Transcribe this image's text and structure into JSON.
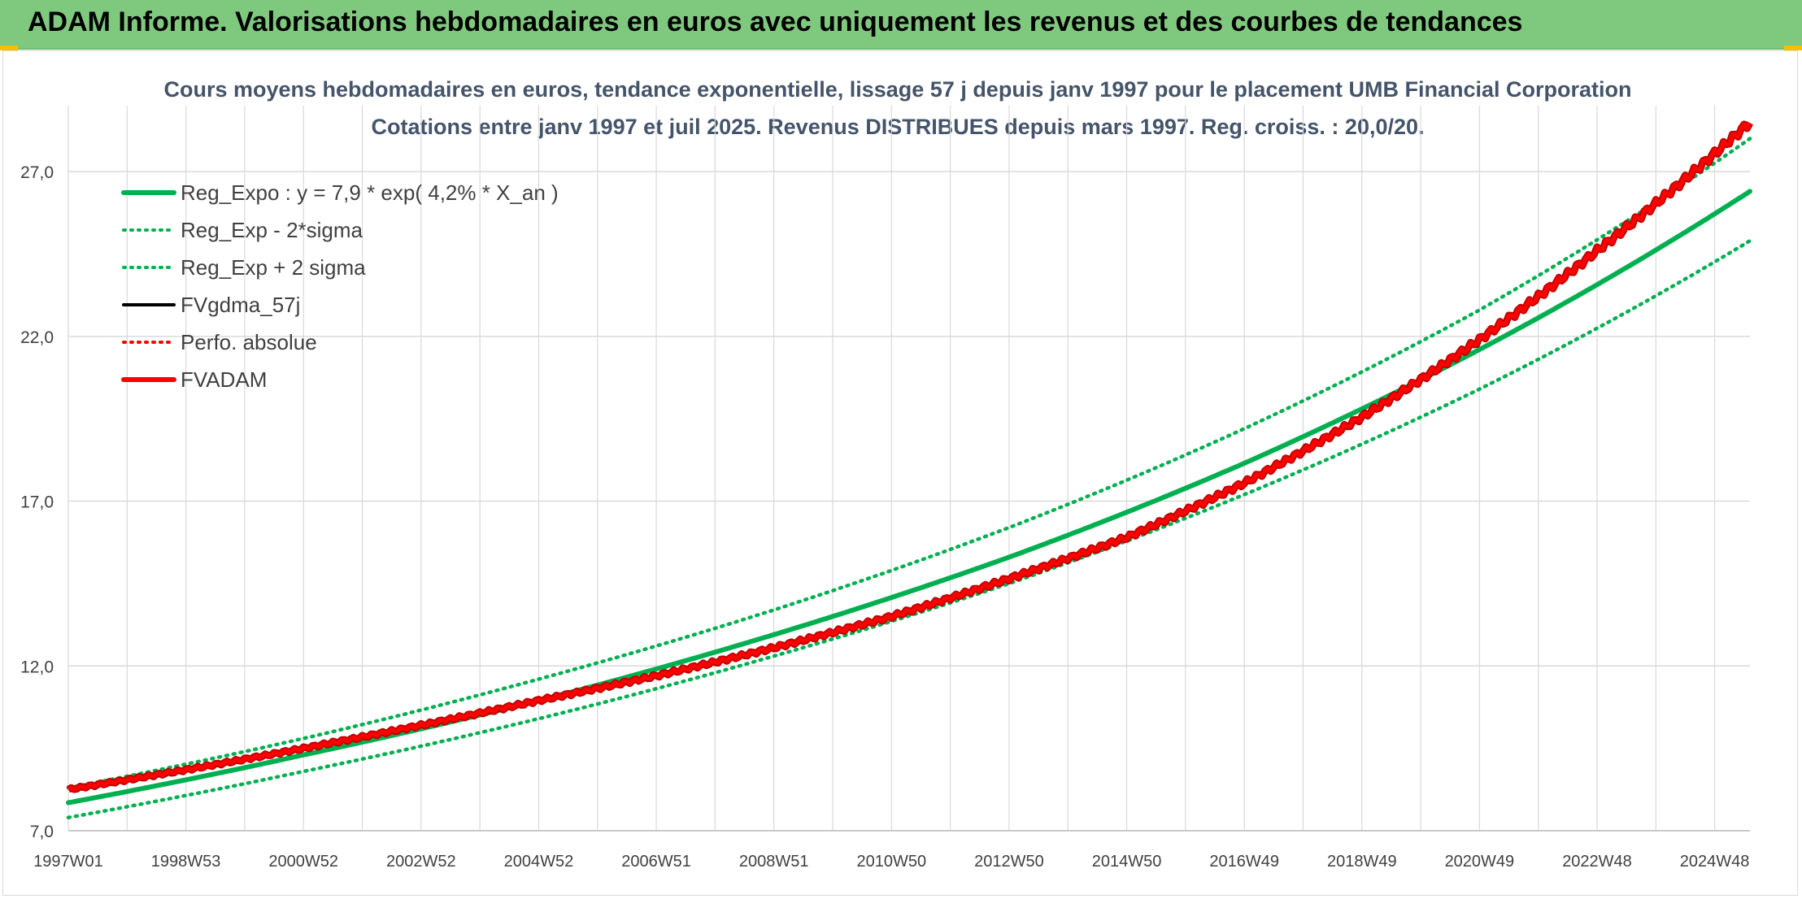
{
  "header": {
    "title": "ADAM Informe. Valorisations hebdomadaires en euros avec uniquement les revenus et des courbes de tendances"
  },
  "colors": {
    "banner": "#7fc97f",
    "trend_green": "#00b050",
    "fvadam_red": "#ff0000",
    "fvadam_edge": "#c00000",
    "fvgdma_black": "#000000",
    "grid": "#d9d9d9"
  },
  "chart_data": {
    "type": "line",
    "title": "Cours moyens hebdomadaires en euros, tendance exponentielle, lissage 57 j depuis janv 1997 pour le placement UMB Financial Corporation",
    "subtitle": "Cotations entre janv 1997 et juil 2025. Revenus DISTRIBUES depuis mars 1997. Reg. croiss. : 20,0/20.",
    "xlabel": "",
    "ylabel": "",
    "ylim": [
      7.0,
      29.0
    ],
    "y_ticks": [
      "7,0",
      "12,0",
      "17,0",
      "22,0",
      "27,0"
    ],
    "y_tick_values": [
      7.0,
      12.0,
      17.0,
      22.0,
      27.0
    ],
    "x_ticks": [
      "1997W01",
      "1998W53",
      "2000W52",
      "2002W52",
      "2004W52",
      "2006W51",
      "2008W51",
      "2010W50",
      "2012W50",
      "2014W50",
      "2016W49",
      "2018W49",
      "2020W49",
      "2022W48",
      "2024W48"
    ],
    "x_tick_years": [
      1997.0,
      1999.0,
      2001.0,
      2003.0,
      2005.0,
      2007.0,
      2009.0,
      2011.0,
      2013.0,
      2015.0,
      2017.0,
      2019.0,
      2021.0,
      2023.0,
      2025.0
    ],
    "x_range_years": [
      1997.0,
      2025.6
    ],
    "grid": true,
    "legend_position": "top-left",
    "legend": [
      {
        "label": "Reg_Expo : y = 7,9 * exp( 4,2% *  X_an )",
        "style": "solid-thick",
        "color": "#00b050"
      },
      {
        "label": "Reg_Exp - 2*sigma",
        "style": "dotted",
        "color": "#00b050"
      },
      {
        "label": "Reg_Exp + 2 sigma",
        "style": "dotted",
        "color": "#00b050"
      },
      {
        "label": "FVgdma_57j",
        "style": "solid",
        "color": "#000000"
      },
      {
        "label": "Perfo. absolue",
        "style": "dotted",
        "color": "#ff0000"
      },
      {
        "label": "FVADAM",
        "style": "solid-thick",
        "color": "#ff0000"
      }
    ],
    "series": [
      {
        "name": "Reg_Expo : y = 7,9 * exp( 4,2% *  X_an )",
        "x": [
          1997.0,
          2001.0,
          2005.0,
          2009.0,
          2013.0,
          2017.0,
          2021.0,
          2025.6
        ],
        "y": [
          7.85,
          9.3,
          10.95,
          12.95,
          15.3,
          18.15,
          21.6,
          26.4
        ]
      },
      {
        "name": "Reg_Exp - 2*sigma",
        "x": [
          1997.0,
          2001.0,
          2005.0,
          2009.0,
          2013.0,
          2017.0,
          2021.0,
          2025.6
        ],
        "y": [
          7.4,
          8.8,
          10.4,
          12.3,
          14.5,
          17.2,
          20.4,
          24.9
        ]
      },
      {
        "name": "Reg_Exp + 2 sigma",
        "x": [
          1997.0,
          2001.0,
          2005.0,
          2009.0,
          2013.0,
          2017.0,
          2021.0,
          2025.6
        ],
        "y": [
          8.3,
          9.8,
          11.6,
          13.7,
          16.2,
          19.2,
          22.8,
          28.0
        ]
      },
      {
        "name": "FVADAM",
        "x": [
          1997.0,
          1999.0,
          2001.0,
          2003.0,
          2005.0,
          2007.0,
          2009.0,
          2011.0,
          2013.0,
          2015.0,
          2017.0,
          2019.0,
          2021.0,
          2023.0,
          2025.6
        ],
        "y": [
          8.25,
          8.85,
          9.5,
          10.2,
          10.95,
          11.7,
          12.55,
          13.5,
          14.65,
          15.9,
          17.55,
          19.55,
          21.9,
          24.6,
          28.5
        ]
      }
    ]
  }
}
